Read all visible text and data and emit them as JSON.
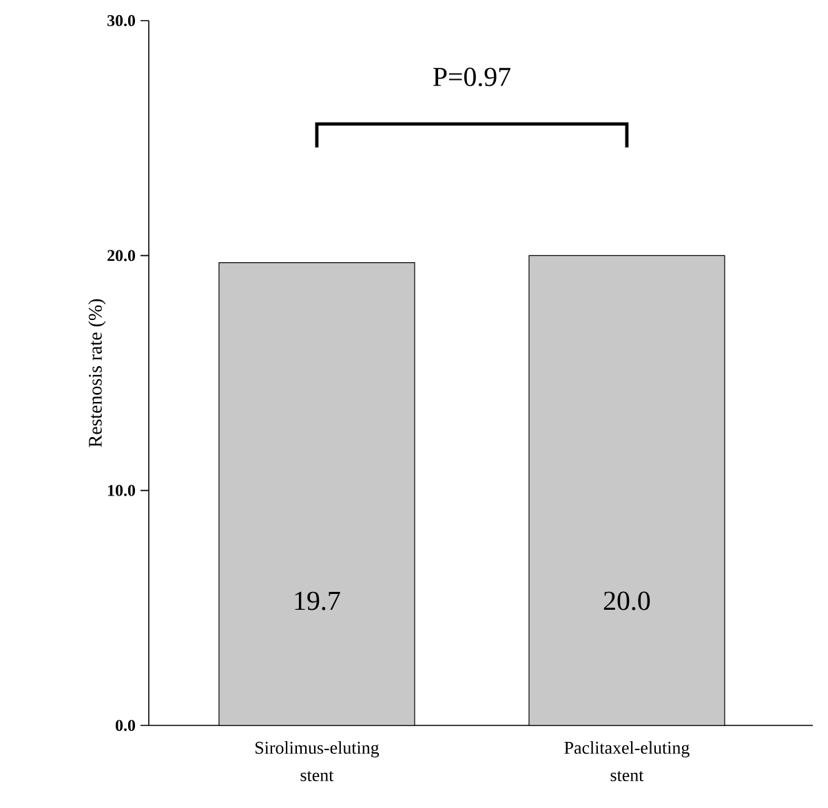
{
  "chart_data": {
    "type": "bar",
    "ylabel": "Restenosis rate (%)",
    "categories": [
      "Sirolimus-eluting stent",
      "Paclitaxel-eluting stent"
    ],
    "values": [
      19.7,
      20.0
    ],
    "color": "#c8c8c8",
    "value_labels": [
      "19.7",
      "20.0"
    ],
    "ylim": [
      0,
      30
    ],
    "yticks": [
      {
        "value": 0,
        "label": "0.0"
      },
      {
        "value": 10,
        "label": "10.0"
      },
      {
        "value": 20,
        "label": "20.0"
      },
      {
        "value": 30,
        "label": "30.0"
      }
    ],
    "annotations": [
      "P=0.97"
    ],
    "grid": false
  }
}
